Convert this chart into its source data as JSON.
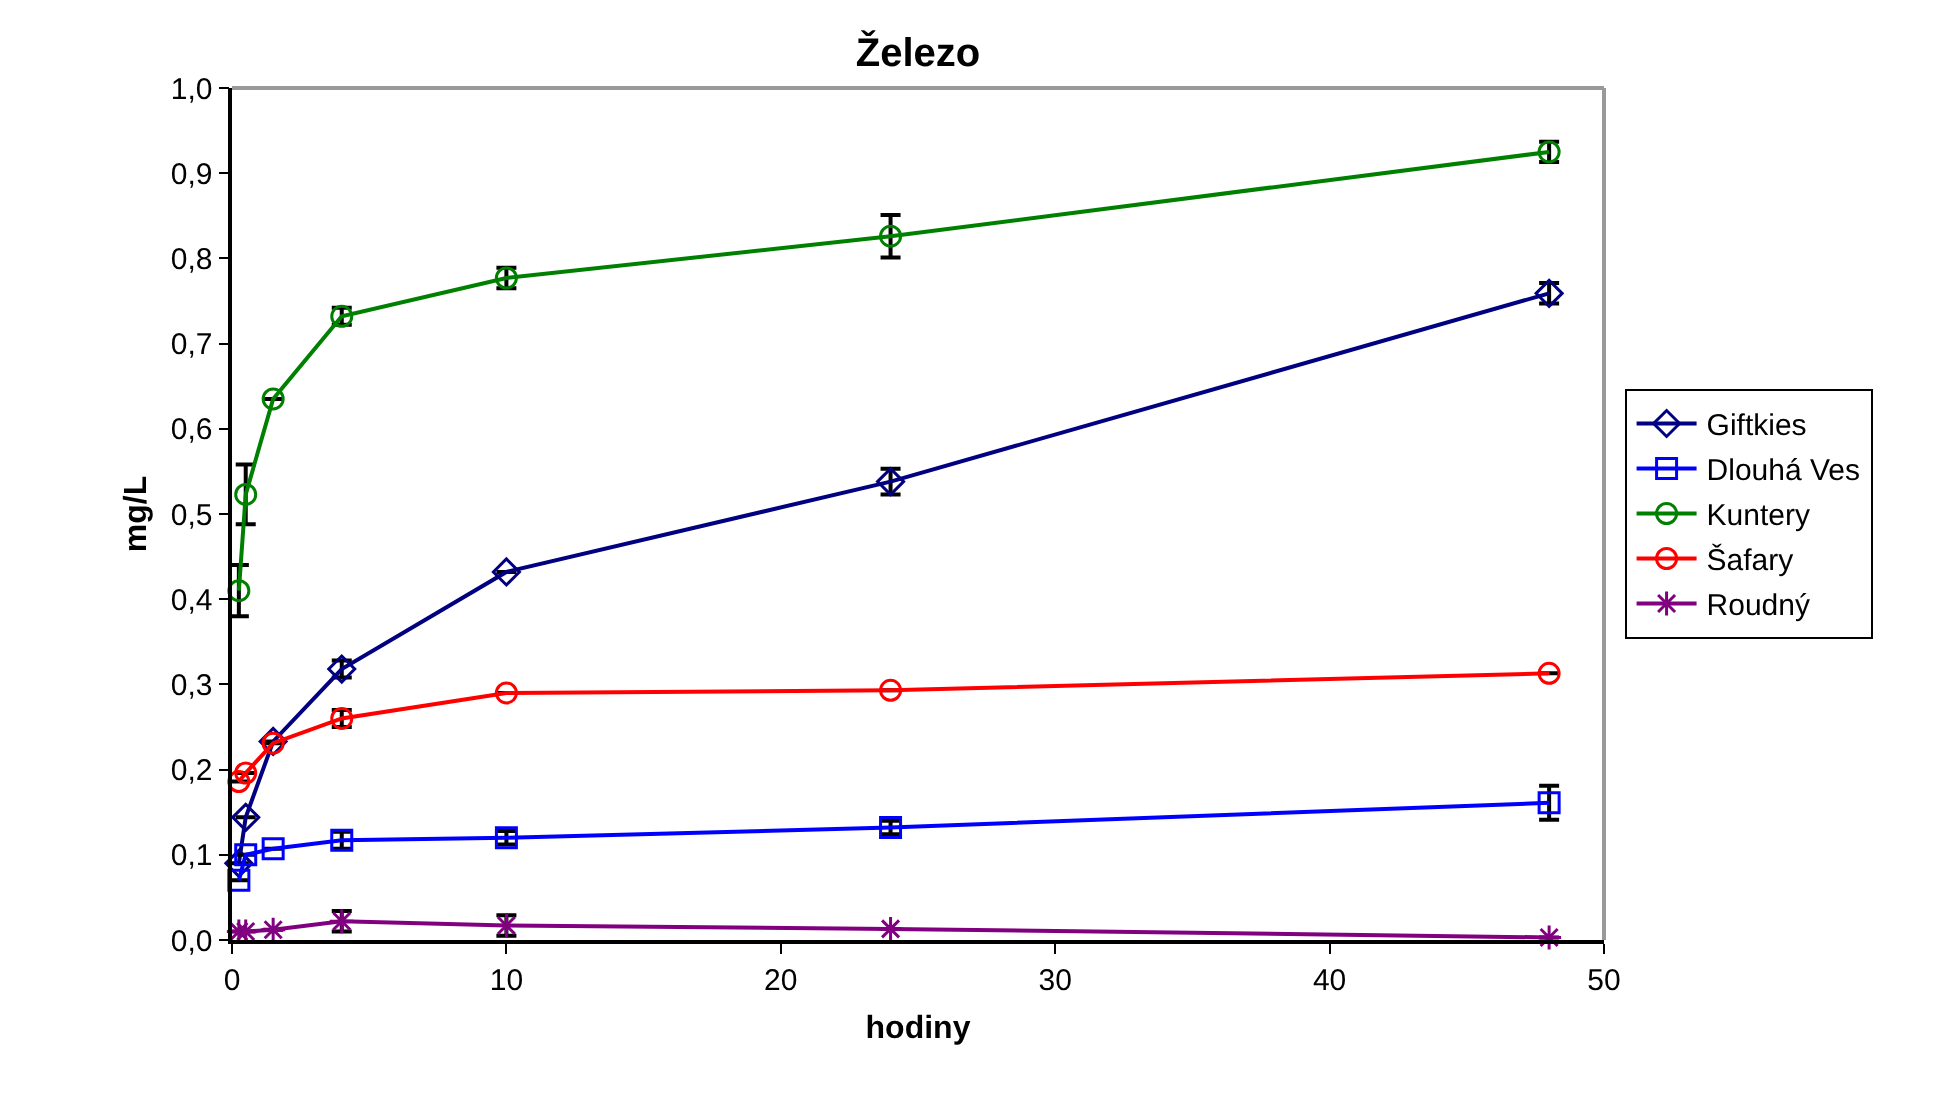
{
  "chart_data": {
    "type": "line",
    "title": "Železo",
    "xlabel": "hodiny",
    "ylabel": "mg/L",
    "x": [
      0.25,
      0.5,
      1.5,
      4,
      10,
      24,
      48
    ],
    "xlim": [
      0,
      50
    ],
    "xticks": [
      0,
      10,
      20,
      30,
      40,
      50
    ],
    "ylim": [
      0,
      1.0
    ],
    "yticks": [
      {
        "value": 0,
        "label": "0,0"
      },
      {
        "value": 0.1,
        "label": "0,1"
      },
      {
        "value": 0.2,
        "label": "0,2"
      },
      {
        "value": 0.3,
        "label": "0,3"
      },
      {
        "value": 0.4,
        "label": "0,4"
      },
      {
        "value": 0.5,
        "label": "0,5"
      },
      {
        "value": 0.6,
        "label": "0,6"
      },
      {
        "value": 0.7,
        "label": "0,7"
      },
      {
        "value": 0.8,
        "label": "0,8"
      },
      {
        "value": 0.9,
        "label": "0,9"
      },
      {
        "value": 1.0,
        "label": "1,0"
      }
    ],
    "grid": false,
    "legend": "right",
    "line_style": "solid",
    "series": [
      {
        "name": "Giftkies",
        "color": "#000080",
        "marker": "diamond",
        "values": [
          0.09,
          0.144,
          0.233,
          0.318,
          0.432,
          0.538,
          0.759
        ],
        "errors": [
          null,
          null,
          null,
          0.01,
          null,
          0.015,
          0.012
        ]
      },
      {
        "name": "Dlouhá Ves",
        "color": "#0000ff",
        "marker": "square",
        "values": [
          0.07,
          0.1,
          0.107,
          0.117,
          0.12,
          0.132,
          0.161
        ],
        "errors": [
          null,
          null,
          null,
          0.01,
          0.008,
          0.008,
          0.02
        ]
      },
      {
        "name": "Kuntery",
        "color": "#008000",
        "marker": "circle",
        "values": [
          0.41,
          0.523,
          0.635,
          0.732,
          0.777,
          0.826,
          0.925
        ],
        "errors": [
          0.03,
          0.035,
          null,
          0.01,
          0.012,
          0.025,
          0.012
        ]
      },
      {
        "name": "Šafary",
        "color": "#ff0000",
        "marker": "circle",
        "values": [
          0.186,
          0.196,
          0.231,
          0.26,
          0.29,
          0.293,
          0.313
        ],
        "errors": [
          null,
          null,
          null,
          0.01,
          null,
          null,
          null
        ]
      },
      {
        "name": "Roudný",
        "color": "#800080",
        "marker": "cross",
        "values": [
          0.01,
          0.01,
          0.012,
          0.022,
          0.017,
          0.013,
          0.003
        ],
        "errors": [
          null,
          null,
          null,
          0.012,
          0.012,
          null,
          null
        ]
      }
    ]
  }
}
